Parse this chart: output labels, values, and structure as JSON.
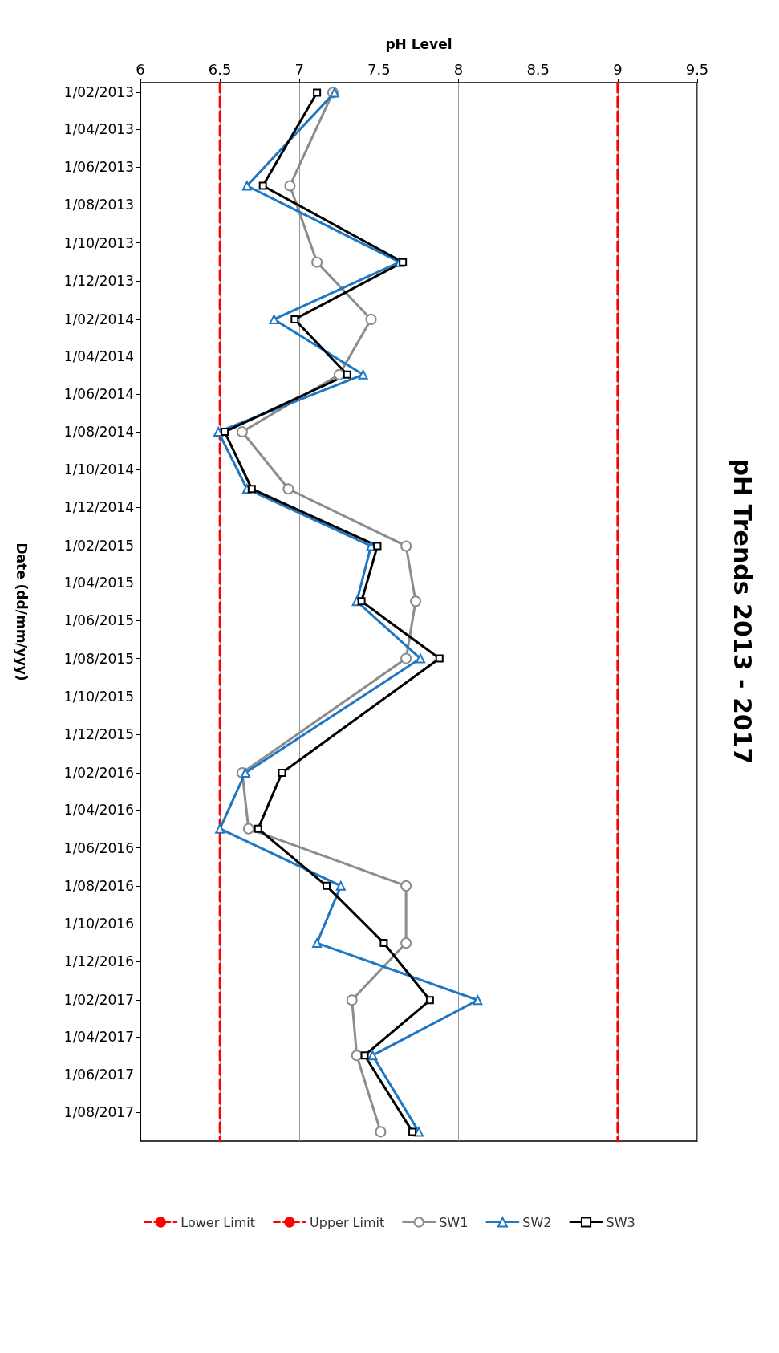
{
  "chart_data": {
    "type": "line",
    "title": "pH Trends 2013 - 2017",
    "xlabel": "pH Level",
    "ylabel": "Date (dd/mm/yyy)",
    "x": [
      "2013-02",
      "2013-07",
      "2013-11",
      "2014-02",
      "2014-05",
      "2014-08",
      "2014-11",
      "2015-02",
      "2015-05",
      "2015-08",
      "2016-02",
      "2016-05",
      "2016-08",
      "2016-11",
      "2017-02",
      "2017-05",
      "2017-09"
    ],
    "series": [
      {
        "name": "Lower Limit",
        "color": "#ff0000",
        "marker": "none",
        "line_style": "dashed",
        "x": [
          "2013-01-16",
          "2017-09-16"
        ],
        "values": [
          6.5,
          6.5
        ]
      },
      {
        "name": "Upper Limit",
        "color": "#ff0000",
        "marker": "none",
        "line_style": "dashed",
        "x": [
          "2013-01-16",
          "2017-09-16"
        ],
        "values": [
          9,
          9
        ]
      },
      {
        "name": "SW1",
        "color": "#8c8c8c",
        "marker": "circle",
        "values": [
          7.21,
          6.94,
          7.11,
          7.45,
          7.25,
          6.64,
          6.93,
          7.67,
          7.73,
          7.67,
          6.64,
          6.68,
          7.67,
          7.67,
          7.33,
          7.36,
          7.51
        ]
      },
      {
        "name": "SW2",
        "color": "#1f77c4",
        "marker": "triangle",
        "values": [
          7.22,
          6.67,
          7.63,
          6.84,
          7.4,
          6.49,
          6.67,
          7.45,
          7.36,
          7.76,
          6.66,
          6.5,
          7.26,
          7.11,
          8.12,
          7.46,
          7.75
        ]
      },
      {
        "name": "SW3",
        "color": "#000000",
        "marker": "square",
        "values": [
          7.11,
          6.77,
          7.65,
          6.97,
          7.3,
          6.53,
          6.7,
          7.49,
          7.39,
          7.88,
          6.89,
          6.74,
          7.17,
          7.53,
          7.82,
          7.41,
          7.71
        ]
      }
    ],
    "line_style": "solid",
    "orientation": "horizontal",
    "ylim": [
      "2017-09-16",
      "2013-01-16"
    ],
    "yticks": [
      {
        "value": "2013-02-01",
        "label": "1/02/2013"
      },
      {
        "value": "2013-04-01",
        "label": "1/04/2013"
      },
      {
        "value": "2013-06-01",
        "label": "1/06/2013"
      },
      {
        "value": "2013-08-01",
        "label": "1/08/2013"
      },
      {
        "value": "2013-10-01",
        "label": "1/10/2013"
      },
      {
        "value": "2013-12-01",
        "label": "1/12/2013"
      },
      {
        "value": "2014-02-01",
        "label": "1/02/2014"
      },
      {
        "value": "2014-04-01",
        "label": "1/04/2014"
      },
      {
        "value": "2014-06-01",
        "label": "1/06/2014"
      },
      {
        "value": "2014-08-01",
        "label": "1/08/2014"
      },
      {
        "value": "2014-10-01",
        "label": "1/10/2014"
      },
      {
        "value": "2014-12-01",
        "label": "1/12/2014"
      },
      {
        "value": "2015-02-01",
        "label": "1/02/2015"
      },
      {
        "value": "2015-04-01",
        "label": "1/04/2015"
      },
      {
        "value": "2015-06-01",
        "label": "1/06/2015"
      },
      {
        "value": "2015-08-01",
        "label": "1/08/2015"
      },
      {
        "value": "2015-10-01",
        "label": "1/10/2015"
      },
      {
        "value": "2015-12-01",
        "label": "1/12/2015"
      },
      {
        "value": "2016-02-01",
        "label": "1/02/2016"
      },
      {
        "value": "2016-04-01",
        "label": "1/04/2016"
      },
      {
        "value": "2016-06-01",
        "label": "1/06/2016"
      },
      {
        "value": "2016-08-01",
        "label": "1/08/2016"
      },
      {
        "value": "2016-10-01",
        "label": "1/10/2016"
      },
      {
        "value": "2016-12-01",
        "label": "1/12/2016"
      },
      {
        "value": "2017-02-01",
        "label": "1/02/2017"
      },
      {
        "value": "2017-04-01",
        "label": "1/04/2017"
      },
      {
        "value": "2017-06-01",
        "label": "1/06/2017"
      },
      {
        "value": "2017-08-01",
        "label": "1/08/2017"
      }
    ],
    "xlim": [
      6,
      9.5
    ],
    "xticks": [
      6,
      6.5,
      7,
      7.5,
      8,
      8.5,
      9,
      9.5
    ],
    "grid": "x",
    "legend": "bottom"
  }
}
